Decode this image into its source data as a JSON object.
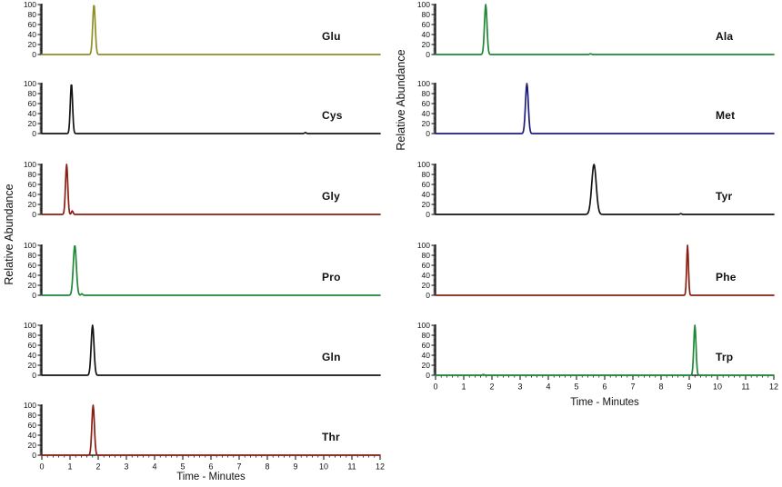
{
  "figure": {
    "ylabel": "Relative Abundance",
    "xlabel": "Time - Minutes",
    "background_color": "#ffffff",
    "axis_color": "#000000",
    "x_ticks": [
      0,
      1,
      2,
      3,
      4,
      5,
      6,
      7,
      8,
      9,
      10,
      11,
      12
    ],
    "y_ticks": [
      100,
      80,
      60,
      40,
      20,
      0
    ],
    "xlim": [
      0,
      12
    ],
    "ylim": [
      0,
      100
    ],
    "grid": false,
    "legend": "none, per-panel compound label at right of each trace"
  },
  "chart_data": [
    {
      "type": "line",
      "label": "Glu",
      "column": "left",
      "row": 0,
      "color": "#8f8f28",
      "peak_time": 1.85,
      "peak_height": 100,
      "peak_sigma": 0.045,
      "blips": []
    },
    {
      "type": "line",
      "label": "Cys",
      "column": "left",
      "row": 1,
      "color": "#141414",
      "peak_time": 1.05,
      "peak_height": 100,
      "peak_sigma": 0.04,
      "blips": [
        {
          "time": 9.35,
          "height": 2
        }
      ]
    },
    {
      "type": "line",
      "label": "Gly",
      "column": "left",
      "row": 2,
      "color": "#8b1e12",
      "peak_time": 0.88,
      "peak_height": 100,
      "peak_sigma": 0.04,
      "blips": [
        {
          "time": 1.08,
          "height": 7
        }
      ]
    },
    {
      "type": "line",
      "label": "Pro",
      "column": "left",
      "row": 3,
      "color": "#1f8736",
      "peak_time": 1.17,
      "peak_height": 100,
      "peak_sigma": 0.055,
      "blips": [
        {
          "time": 1.42,
          "height": 3
        }
      ]
    },
    {
      "type": "line",
      "label": "Gln",
      "column": "left",
      "row": 4,
      "color": "#141414",
      "peak_time": 1.8,
      "peak_height": 100,
      "peak_sigma": 0.05,
      "blips": []
    },
    {
      "type": "line",
      "label": "Thr",
      "column": "left",
      "row": 5,
      "color": "#8b1e12",
      "peak_time": 1.82,
      "peak_height": 100,
      "peak_sigma": 0.045,
      "blips": []
    },
    {
      "type": "line",
      "label": "Ala",
      "column": "right",
      "row": 0,
      "color": "#1f8736",
      "peak_time": 1.78,
      "peak_height": 100,
      "peak_sigma": 0.045,
      "blips": [
        {
          "time": 5.5,
          "height": 1.5
        }
      ]
    },
    {
      "type": "line",
      "label": "Met",
      "column": "right",
      "row": 1,
      "color": "#1d1d80",
      "peak_time": 3.24,
      "peak_height": 100,
      "peak_sigma": 0.05,
      "blips": []
    },
    {
      "type": "line",
      "label": "Tyr",
      "column": "right",
      "row": 2,
      "color": "#141414",
      "peak_time": 5.62,
      "peak_height": 100,
      "peak_sigma": 0.08,
      "blips": [
        {
          "time": 8.7,
          "height": 1.5
        }
      ]
    },
    {
      "type": "line",
      "label": "Phe",
      "column": "right",
      "row": 3,
      "color": "#8b1e12",
      "peak_time": 8.94,
      "peak_height": 100,
      "peak_sigma": 0.032,
      "blips": []
    },
    {
      "type": "line",
      "label": "Trp",
      "column": "right",
      "row": 4,
      "color": "#1f8736",
      "peak_time": 9.2,
      "peak_height": 100,
      "peak_sigma": 0.04,
      "blips": [
        {
          "time": 1.7,
          "height": 1.5
        }
      ]
    }
  ]
}
